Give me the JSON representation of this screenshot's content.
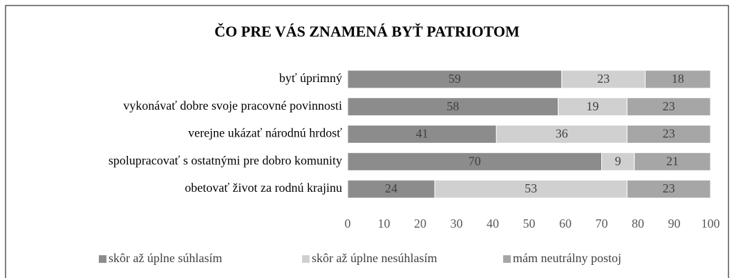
{
  "chart_data": {
    "type": "stacked-barh",
    "title": "ČO PRE VÁS ZNAMENÁ BYŤ PATRIOTOM",
    "categories": [
      "byť úprimný",
      "vykonávať dobre svoje pracovné povinnosti",
      "verejne ukázať národnú hrdosť",
      "spolupracovať s ostatnými pre dobro  komunity",
      "obetovať život za rodnú krajinu"
    ],
    "series": [
      {
        "name": "skôr až úplne súhlasím",
        "color": "#8c8c8c",
        "values": [
          59,
          58,
          41,
          70,
          24
        ]
      },
      {
        "name": "skôr až úplne nesúhlasím",
        "color": "#d0d0d0",
        "values": [
          23,
          19,
          36,
          9,
          53
        ]
      },
      {
        "name": "mám neutrálny postoj",
        "color": "#a6a6a6",
        "values": [
          18,
          23,
          23,
          21,
          23
        ]
      }
    ],
    "xlim": [
      0,
      100
    ],
    "xticks": [
      0,
      10,
      20,
      30,
      40,
      50,
      60,
      70,
      80,
      90,
      100
    ],
    "legend": "bottom"
  }
}
